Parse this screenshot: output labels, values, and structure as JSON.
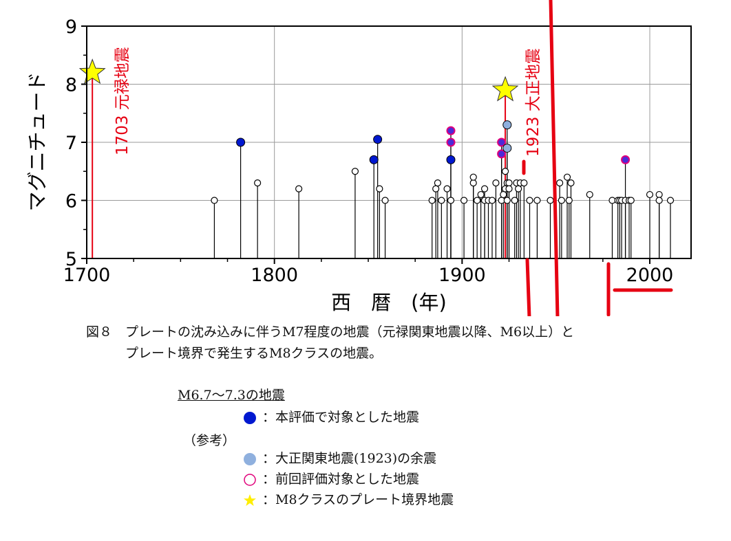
{
  "chart_data": {
    "type": "scatter",
    "xlabel": "西　暦　(年)",
    "ylabel": "マグニチュード",
    "xlim": [
      1700,
      2022
    ],
    "ylim": [
      5,
      9
    ],
    "xticks": [
      1700,
      1800,
      1900,
      2000
    ],
    "yticks": [
      5,
      6,
      7,
      8,
      9
    ],
    "grid": true,
    "mark_style": "stems from baseline M5",
    "colors": {
      "target": "#0018d0",
      "aftershock": "#8fb0de",
      "previous_edge": "#e0007a",
      "star": "#ffff00",
      "annotation": "#e60012",
      "open": "#ffffff"
    },
    "series": [
      {
        "category": "open",
        "points": [
          {
            "x": 1768,
            "y": 6.0
          },
          {
            "x": 1791,
            "y": 6.3
          },
          {
            "x": 1813,
            "y": 6.2
          },
          {
            "x": 1843,
            "y": 6.5
          },
          {
            "x": 1856,
            "y": 6.2
          },
          {
            "x": 1859,
            "y": 6.0
          },
          {
            "x": 1884,
            "y": 6.0
          },
          {
            "x": 1886,
            "y": 6.2
          },
          {
            "x": 1887,
            "y": 6.3
          },
          {
            "x": 1889,
            "y": 6.0
          },
          {
            "x": 1892,
            "y": 6.2
          },
          {
            "x": 1894,
            "y": 6.0
          },
          {
            "x": 1901,
            "y": 6.0
          },
          {
            "x": 1906,
            "y": 6.3
          },
          {
            "x": 1906,
            "y": 6.4
          },
          {
            "x": 1908,
            "y": 6.0
          },
          {
            "x": 1910,
            "y": 6.1
          },
          {
            "x": 1912,
            "y": 6.2
          },
          {
            "x": 1912,
            "y": 6.0
          },
          {
            "x": 1914,
            "y": 6.0
          },
          {
            "x": 1916,
            "y": 6.0
          },
          {
            "x": 1918,
            "y": 6.3
          },
          {
            "x": 1921,
            "y": 6.0
          },
          {
            "x": 1922,
            "y": 6.1
          },
          {
            "x": 1923,
            "y": 6.2
          },
          {
            "x": 1923,
            "y": 6.5
          },
          {
            "x": 1924,
            "y": 6.3
          },
          {
            "x": 1924,
            "y": 6.0
          },
          {
            "x": 1925,
            "y": 6.3
          },
          {
            "x": 1925,
            "y": 6.2
          },
          {
            "x": 1928,
            "y": 6.0
          },
          {
            "x": 1929,
            "y": 6.3
          },
          {
            "x": 1930,
            "y": 6.2
          },
          {
            "x": 1931,
            "y": 6.3
          },
          {
            "x": 1933,
            "y": 6.3
          },
          {
            "x": 1936,
            "y": 6.0
          },
          {
            "x": 1940,
            "y": 6.0
          },
          {
            "x": 1947,
            "y": 6.0
          },
          {
            "x": 1952,
            "y": 6.3
          },
          {
            "x": 1953,
            "y": 6.0
          },
          {
            "x": 1956,
            "y": 6.4
          },
          {
            "x": 1957,
            "y": 6.0
          },
          {
            "x": 1958,
            "y": 6.3
          },
          {
            "x": 1968,
            "y": 6.1
          },
          {
            "x": 1980,
            "y": 6.0
          },
          {
            "x": 1983,
            "y": 6.0
          },
          {
            "x": 1984,
            "y": 6.0
          },
          {
            "x": 1985,
            "y": 6.0
          },
          {
            "x": 1987,
            "y": 6.0
          },
          {
            "x": 1989,
            "y": 6.0
          },
          {
            "x": 1990,
            "y": 6.0
          },
          {
            "x": 2000,
            "y": 6.1
          },
          {
            "x": 2005,
            "y": 6.1
          },
          {
            "x": 2005,
            "y": 6.0
          },
          {
            "x": 2011,
            "y": 6.0
          }
        ]
      },
      {
        "category": "target",
        "points": [
          {
            "x": 1782,
            "y": 7.0
          },
          {
            "x": 1853,
            "y": 6.7
          },
          {
            "x": 1855,
            "y": 7.05
          },
          {
            "x": 1894,
            "y": 6.7
          }
        ]
      },
      {
        "category": "previous",
        "points": [
          {
            "x": 1894,
            "y": 7.2
          },
          {
            "x": 1894,
            "y": 7.0
          },
          {
            "x": 1921,
            "y": 7.0
          },
          {
            "x": 1921,
            "y": 6.8
          },
          {
            "x": 1987,
            "y": 6.7
          }
        ]
      },
      {
        "category": "aftershock",
        "points": [
          {
            "x": 1924,
            "y": 7.3
          },
          {
            "x": 1924,
            "y": 6.9
          }
        ]
      },
      {
        "category": "star",
        "points": [
          {
            "x": 1703,
            "y": 8.2
          },
          {
            "x": 1923,
            "y": 7.9
          }
        ]
      }
    ],
    "annotations": [
      {
        "text": "1703 元禄地震",
        "x": 1703
      },
      {
        "text": "1923 大正地震",
        "x": 1923
      }
    ]
  },
  "caption": {
    "line1": "図８　プレートの沈み込みに伴うM7程度の地震（元禄関東地震以降、M6以上）と",
    "line2": "プレート境界で発生するM8クラスの地震。"
  },
  "legend": {
    "title": "M6.7〜7.3の地震",
    "reference": "（参考）",
    "items": [
      {
        "label": "：本評価で対象とした地震"
      },
      {
        "label": "：大正関東地震(1923)の余震"
      },
      {
        "label": "：前回評価対象とした地震"
      },
      {
        "label": "：M8クラスのプレート境界地震"
      }
    ]
  }
}
